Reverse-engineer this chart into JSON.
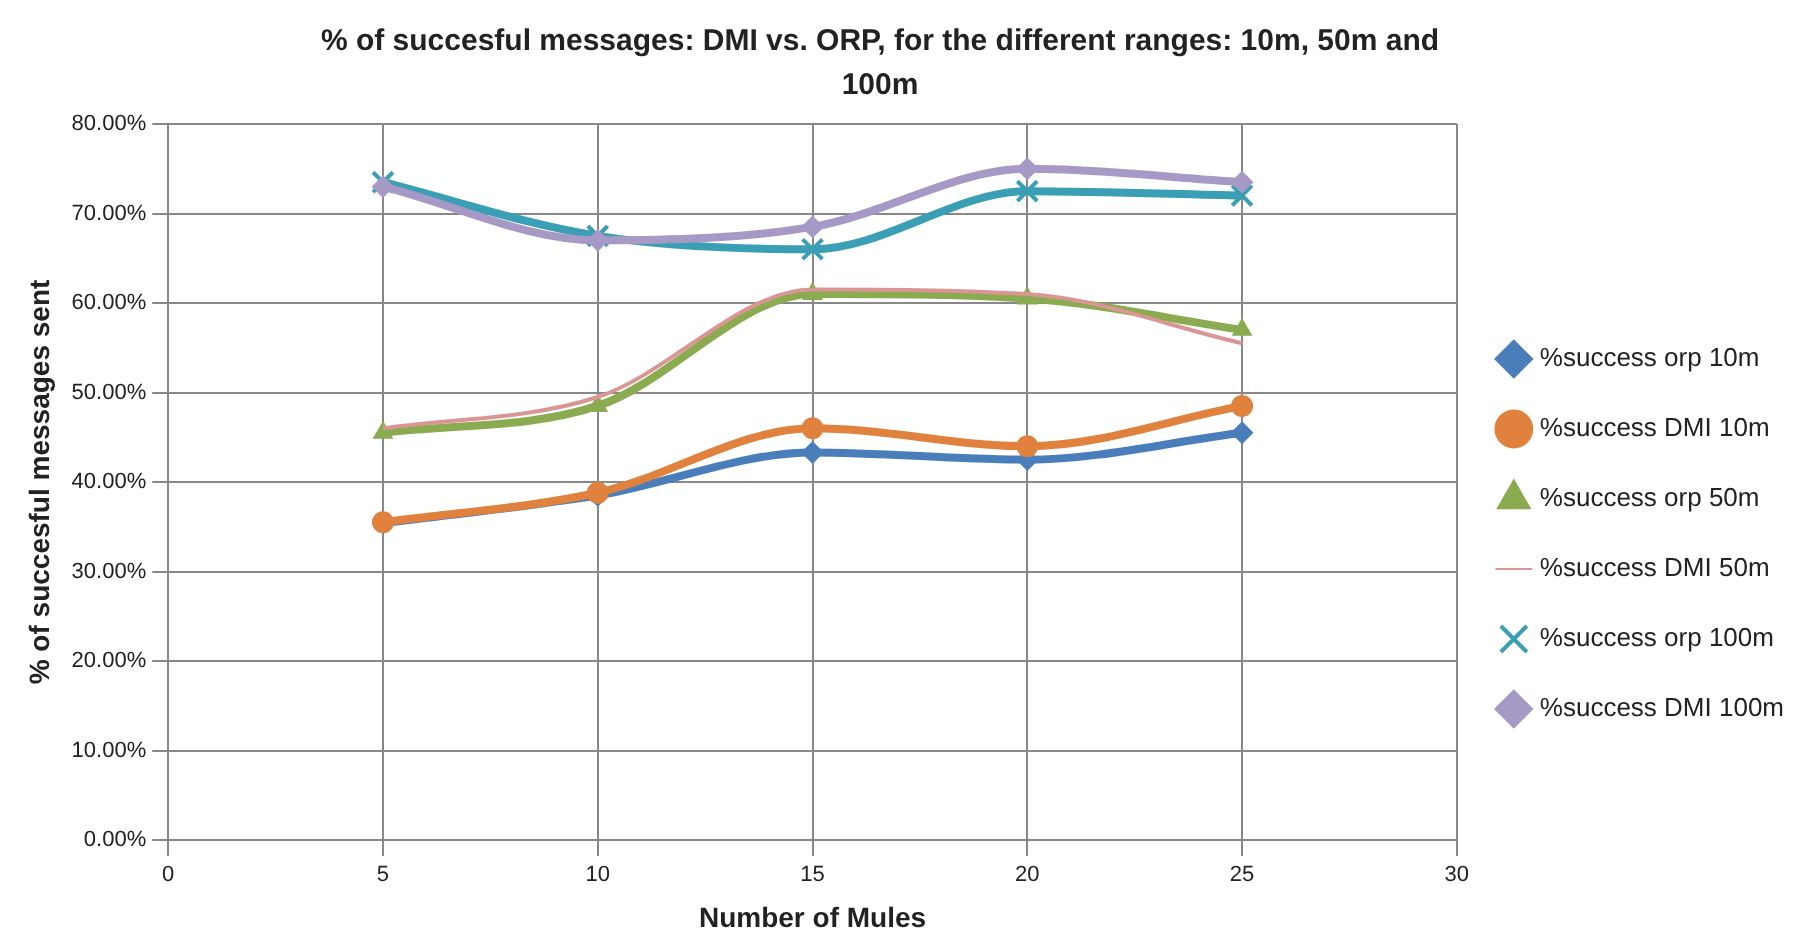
{
  "chart_data": {
    "type": "line",
    "title": "% of succesful messages: DMI vs. ORP, for the different ranges: 10m, 50m and 100m",
    "xlabel": "Number of Mules",
    "ylabel": "% of succesful messages sent",
    "x": [
      5,
      10,
      15,
      20,
      25
    ],
    "series": [
      {
        "name": "%success orp 10m",
        "color": "#4a7ebb",
        "marker": "diamond",
        "values": [
          35.4,
          38.5,
          43.3,
          42.5,
          45.5
        ]
      },
      {
        "name": "%success DMI 10m",
        "color": "#e0823d",
        "marker": "circle",
        "values": [
          35.5,
          38.8,
          46,
          44,
          48.5
        ]
      },
      {
        "name": "%success orp 50m",
        "color": "#8aab4f",
        "marker": "triangle",
        "values": [
          45.5,
          48.5,
          61,
          60.5,
          57
        ]
      },
      {
        "name": "%success DMI 50m",
        "color": "#d99694",
        "marker": "none",
        "values": [
          46,
          49.5,
          61.5,
          61,
          55.5
        ]
      },
      {
        "name": "%success orp 100m",
        "color": "#3a9fb5",
        "marker": "cross",
        "values": [
          73.5,
          67.5,
          66,
          72.5,
          72
        ]
      },
      {
        "name": "%success DMI 100m",
        "color": "#a799c6",
        "marker": "diamond",
        "values": [
          73,
          67,
          68.5,
          75,
          73.5
        ]
      }
    ],
    "xlim": [
      0,
      30
    ],
    "xticks": [
      0,
      5,
      10,
      15,
      20,
      25,
      30
    ],
    "ylim": [
      0,
      80
    ],
    "yticks": [
      {
        "value": 0,
        "label": "0.00%"
      },
      {
        "value": 10,
        "label": "10.00%"
      },
      {
        "value": 20,
        "label": "20.00%"
      },
      {
        "value": 30,
        "label": "30.00%"
      },
      {
        "value": 40,
        "label": "40.00%"
      },
      {
        "value": 50,
        "label": "50.00%"
      },
      {
        "value": 60,
        "label": "60.00%"
      },
      {
        "value": 70,
        "label": "70.00%"
      },
      {
        "value": 80,
        "label": "80.00%"
      }
    ],
    "grid": true,
    "legend": "right",
    "line_style": "solid"
  }
}
